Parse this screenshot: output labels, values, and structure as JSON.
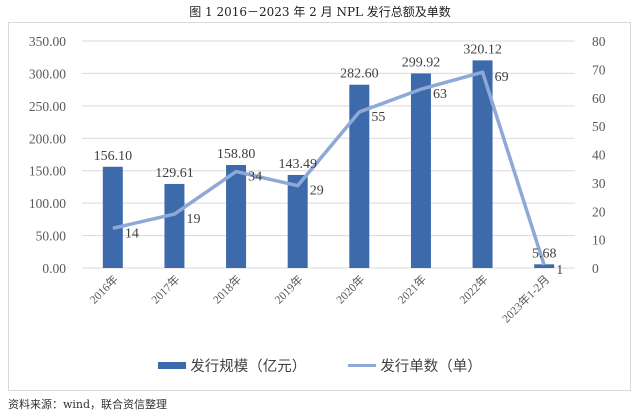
{
  "title": "图 1   2016－2023 年 2 月 NPL 发行总额及单数",
  "source": "资料来源：wind，联合资信整理",
  "colors": {
    "bar": "#3d6aaa",
    "line": "#8fa9d6",
    "grid": "#d9d9d9"
  },
  "legend": {
    "bar_label": "发行规模（亿元）",
    "line_label": "发行单数（单）"
  },
  "axes": {
    "left_ticks": [
      "0.00",
      "50.00",
      "100.00",
      "150.00",
      "200.00",
      "250.00",
      "300.00",
      "350.00"
    ],
    "right_ticks": [
      "0",
      "10",
      "20",
      "30",
      "40",
      "50",
      "60",
      "70",
      "80"
    ]
  },
  "chart_data": {
    "type": "bar+line",
    "title": "图 1   2016－2023 年 2 月 NPL 发行总额及单数",
    "categories": [
      "2016年",
      "2017年",
      "2018年",
      "2019年",
      "2020年",
      "2021年",
      "2022年",
      "2023年1-2月"
    ],
    "series": [
      {
        "name": "发行规模（亿元）",
        "type": "bar",
        "axis": "left",
        "values": [
          156.1,
          129.61,
          158.8,
          143.49,
          282.6,
          299.92,
          320.12,
          5.68
        ]
      },
      {
        "name": "发行单数（单）",
        "type": "line",
        "axis": "right",
        "values": [
          14,
          19,
          34,
          29,
          55,
          63,
          69,
          1
        ]
      }
    ],
    "bar_labels": [
      "156.10",
      "129.61",
      "158.80",
      "143.49",
      "282.60",
      "299.92",
      "320.12",
      "5.68"
    ],
    "line_labels": [
      "14",
      "19",
      "34",
      "29",
      "55",
      "63",
      "69",
      "1"
    ],
    "xlabel": "",
    "ylabel_left": "",
    "ylabel_right": "",
    "ylim_left": [
      0,
      350
    ],
    "ylim_right": [
      0,
      80
    ],
    "grid": true,
    "legend_position": "bottom"
  }
}
